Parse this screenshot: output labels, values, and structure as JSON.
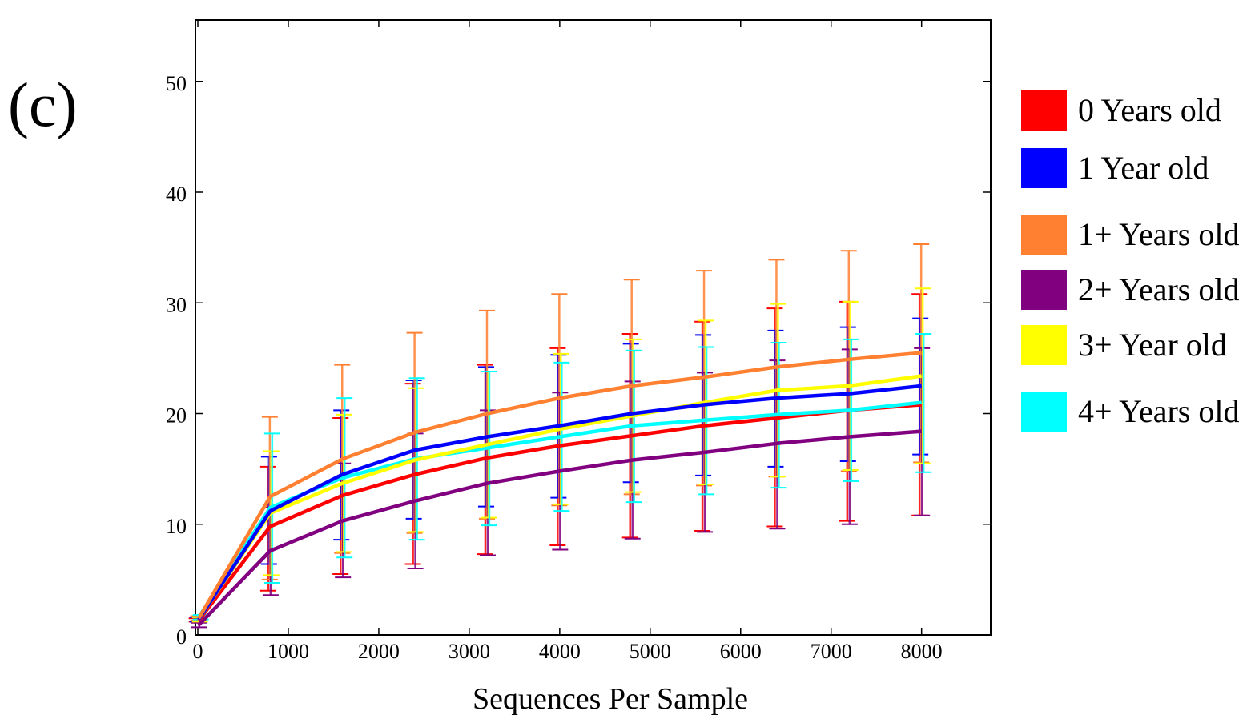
{
  "panel_label": "(c)",
  "chart_data": {
    "type": "line",
    "title": "",
    "xlabel": "Sequences Per Sample",
    "ylabel": "",
    "xlim": [
      0,
      8800
    ],
    "ylim": [
      0,
      56
    ],
    "x_ticks": [
      0,
      1000,
      2000,
      3000,
      4000,
      5000,
      6000,
      7000,
      8000
    ],
    "y_ticks": [
      0,
      10,
      20,
      30,
      40,
      50
    ],
    "grid": false,
    "error_bars": true,
    "legend_position": "right",
    "x": [
      10,
      800,
      1600,
      2400,
      3200,
      4000,
      4800,
      5600,
      6400,
      7200,
      8000
    ],
    "series": [
      {
        "name": "0 Years old",
        "color": "#ff0000",
        "values": [
          1.3,
          9.8,
          12.6,
          14.5,
          16.0,
          17.1,
          18.0,
          18.9,
          19.6,
          20.3,
          20.8
        ],
        "err_low": [
          1.2,
          4.0,
          5.5,
          6.4,
          7.3,
          8.1,
          8.8,
          9.4,
          9.8,
          10.3,
          10.8
        ],
        "err_high": [
          1.5,
          15.2,
          19.6,
          22.7,
          24.4,
          25.9,
          27.2,
          28.3,
          29.5,
          30.1,
          30.8
        ]
      },
      {
        "name": "1 Year old",
        "color": "#0000ff",
        "values": [
          1.4,
          11.2,
          14.5,
          16.7,
          17.9,
          18.9,
          20.0,
          20.8,
          21.4,
          21.8,
          22.5
        ],
        "err_low": [
          1.2,
          6.4,
          8.6,
          10.5,
          11.6,
          12.4,
          13.8,
          14.4,
          15.2,
          15.7,
          16.3
        ],
        "err_high": [
          1.6,
          16.1,
          20.3,
          23.0,
          24.2,
          25.3,
          26.3,
          27.1,
          27.5,
          27.8,
          28.6
        ]
      },
      {
        "name": "1+ Years old",
        "color": "#ff8030",
        "values": [
          1.5,
          12.5,
          15.9,
          18.3,
          20.0,
          21.4,
          22.5,
          23.3,
          24.2,
          24.9,
          25.5
        ],
        "err_low": [
          1.3,
          5.0,
          7.4,
          9.2,
          10.5,
          11.7,
          12.7,
          13.5,
          14.3,
          14.8,
          15.6
        ],
        "err_high": [
          1.7,
          19.7,
          24.4,
          27.3,
          29.3,
          30.8,
          32.1,
          32.9,
          33.9,
          34.7,
          35.3
        ]
      },
      {
        "name": "2+ Years old",
        "color": "#800080",
        "values": [
          0.9,
          7.6,
          10.3,
          12.1,
          13.7,
          14.8,
          15.8,
          16.5,
          17.3,
          17.9,
          18.4
        ],
        "err_low": [
          0.7,
          3.6,
          5.2,
          6.0,
          7.2,
          7.7,
          8.7,
          9.3,
          9.6,
          10.0,
          10.8
        ],
        "err_high": [
          1.1,
          11.5,
          15.5,
          18.2,
          20.3,
          21.9,
          22.9,
          23.7,
          24.8,
          25.8,
          25.9
        ]
      },
      {
        "name": "3+ Year old",
        "color": "#ffff00",
        "values": [
          1.4,
          11.0,
          13.7,
          15.8,
          17.2,
          18.6,
          19.8,
          21.0,
          22.1,
          22.5,
          23.4
        ],
        "err_low": [
          1.2,
          5.4,
          7.5,
          9.3,
          10.6,
          11.8,
          12.9,
          13.6,
          14.3,
          14.9,
          15.5
        ],
        "err_high": [
          1.6,
          16.6,
          19.9,
          22.3,
          23.8,
          25.4,
          26.7,
          28.4,
          29.9,
          30.1,
          31.3
        ]
      },
      {
        "name": "4+ Years old",
        "color": "#00ffff",
        "values": [
          1.6,
          11.5,
          14.2,
          15.9,
          16.9,
          17.9,
          18.9,
          19.4,
          19.9,
          20.3,
          21.0
        ],
        "err_low": [
          1.4,
          4.7,
          7.0,
          8.6,
          9.9,
          11.2,
          12.0,
          12.7,
          13.3,
          13.9,
          14.7
        ],
        "err_high": [
          1.8,
          18.2,
          21.4,
          23.2,
          23.8,
          24.6,
          25.7,
          26.0,
          26.4,
          26.7,
          27.2
        ]
      }
    ]
  }
}
